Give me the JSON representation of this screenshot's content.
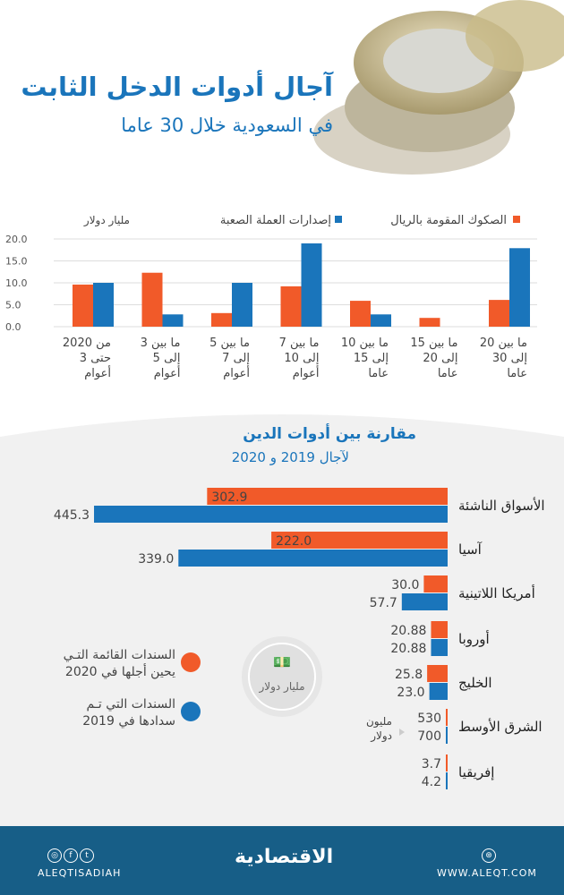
{
  "header": {
    "title": "آجال أدوات الدخل الثابت",
    "subtitle": "في السعودية خلال 30 عاما"
  },
  "colors": {
    "orange": "#f15a29",
    "blue": "#1a75bb",
    "footer": "#175e87"
  },
  "chart_data": [
    {
      "type": "bar",
      "unit_label": "مليار دولار",
      "categories": [
        "من 2020 حتى 3 أعوام",
        "ما بين 3 إلى 5 أعوام",
        "ما بين 5 إلى 7 أعوام",
        "ما بين 7 إلى 10 أعوام",
        "ما بين 10 إلى 15 عاما",
        "ما بين 15 إلى 20 عاما",
        "ما بين 20 إلى 30 عاما"
      ],
      "category_lines": [
        [
          "من 2020",
          "حتى 3",
          "أعوام"
        ],
        [
          "ما بين 3",
          "إلى 5",
          "أعوام"
        ],
        [
          "ما بين 5",
          "إلى 7",
          "أعوام"
        ],
        [
          "ما بين 7",
          "إلى 10",
          "أعوام"
        ],
        [
          "ما بين 10",
          "إلى 15",
          "عاما"
        ],
        [
          "ما بين 15",
          "إلى 20",
          "عاما"
        ],
        [
          "ما بين 20",
          "إلى 30",
          "عاما"
        ]
      ],
      "series": [
        {
          "name": "الصكوك المقومة بالريال",
          "color": "#f15a29",
          "values": [
            9.6,
            12.3,
            3.1,
            9.2,
            5.9,
            2.0,
            6.1
          ]
        },
        {
          "name": "إصدارات العملة الصعبة",
          "color": "#1a75bb",
          "values": [
            10.0,
            2.8,
            10.0,
            19.0,
            2.8,
            0,
            17.9
          ]
        }
      ],
      "yticks": [
        "0.0",
        "5.0",
        "10.0",
        "15.0",
        "20.0"
      ],
      "ylim": [
        0,
        20
      ],
      "legend_position": "top-right"
    },
    {
      "type": "bar",
      "orientation": "horizontal",
      "title": "مقارنة بين أدوات الدين",
      "subtitle": "لآجال 2019 و 2020",
      "unit_label": "مليار دولار",
      "categories": [
        "الأسواق الناشئة",
        "آسيا",
        "أمريكا اللاتينية",
        "أوروبا",
        "الخليج",
        "الشرق الأوسط",
        "إفريقيا"
      ],
      "series": [
        {
          "name": "السندات القائمة التي يحين أجلها في 2020",
          "color": "#f15a29",
          "values": [
            302.9,
            222.0,
            30.0,
            20.88,
            25.8,
            530,
            3.7
          ],
          "labels": [
            "302.9",
            "222.0",
            "30.0",
            "20.88",
            "25.8",
            "530",
            "3.7"
          ]
        },
        {
          "name": "السندات التي تم سدادها في 2019",
          "color": "#1a75bb",
          "values": [
            445.3,
            339.0,
            57.7,
            20.88,
            23.0,
            700,
            4.2
          ],
          "labels": [
            "445.3",
            "339.0",
            "57.7",
            "20.88",
            "23.0",
            "700",
            "4.2"
          ]
        }
      ],
      "note": "مليون دولار",
      "legend_lines": [
        [
          "السندات القائمة التـي",
          "يحين أجلها في 2020"
        ],
        [
          "السندات التي تـم",
          "سدادها في 2019"
        ]
      ]
    }
  ],
  "footer": {
    "social_handle": "ALEQTISADIAH",
    "logo": "الاقتصادية",
    "website": "WWW.ALEQT.COM"
  }
}
